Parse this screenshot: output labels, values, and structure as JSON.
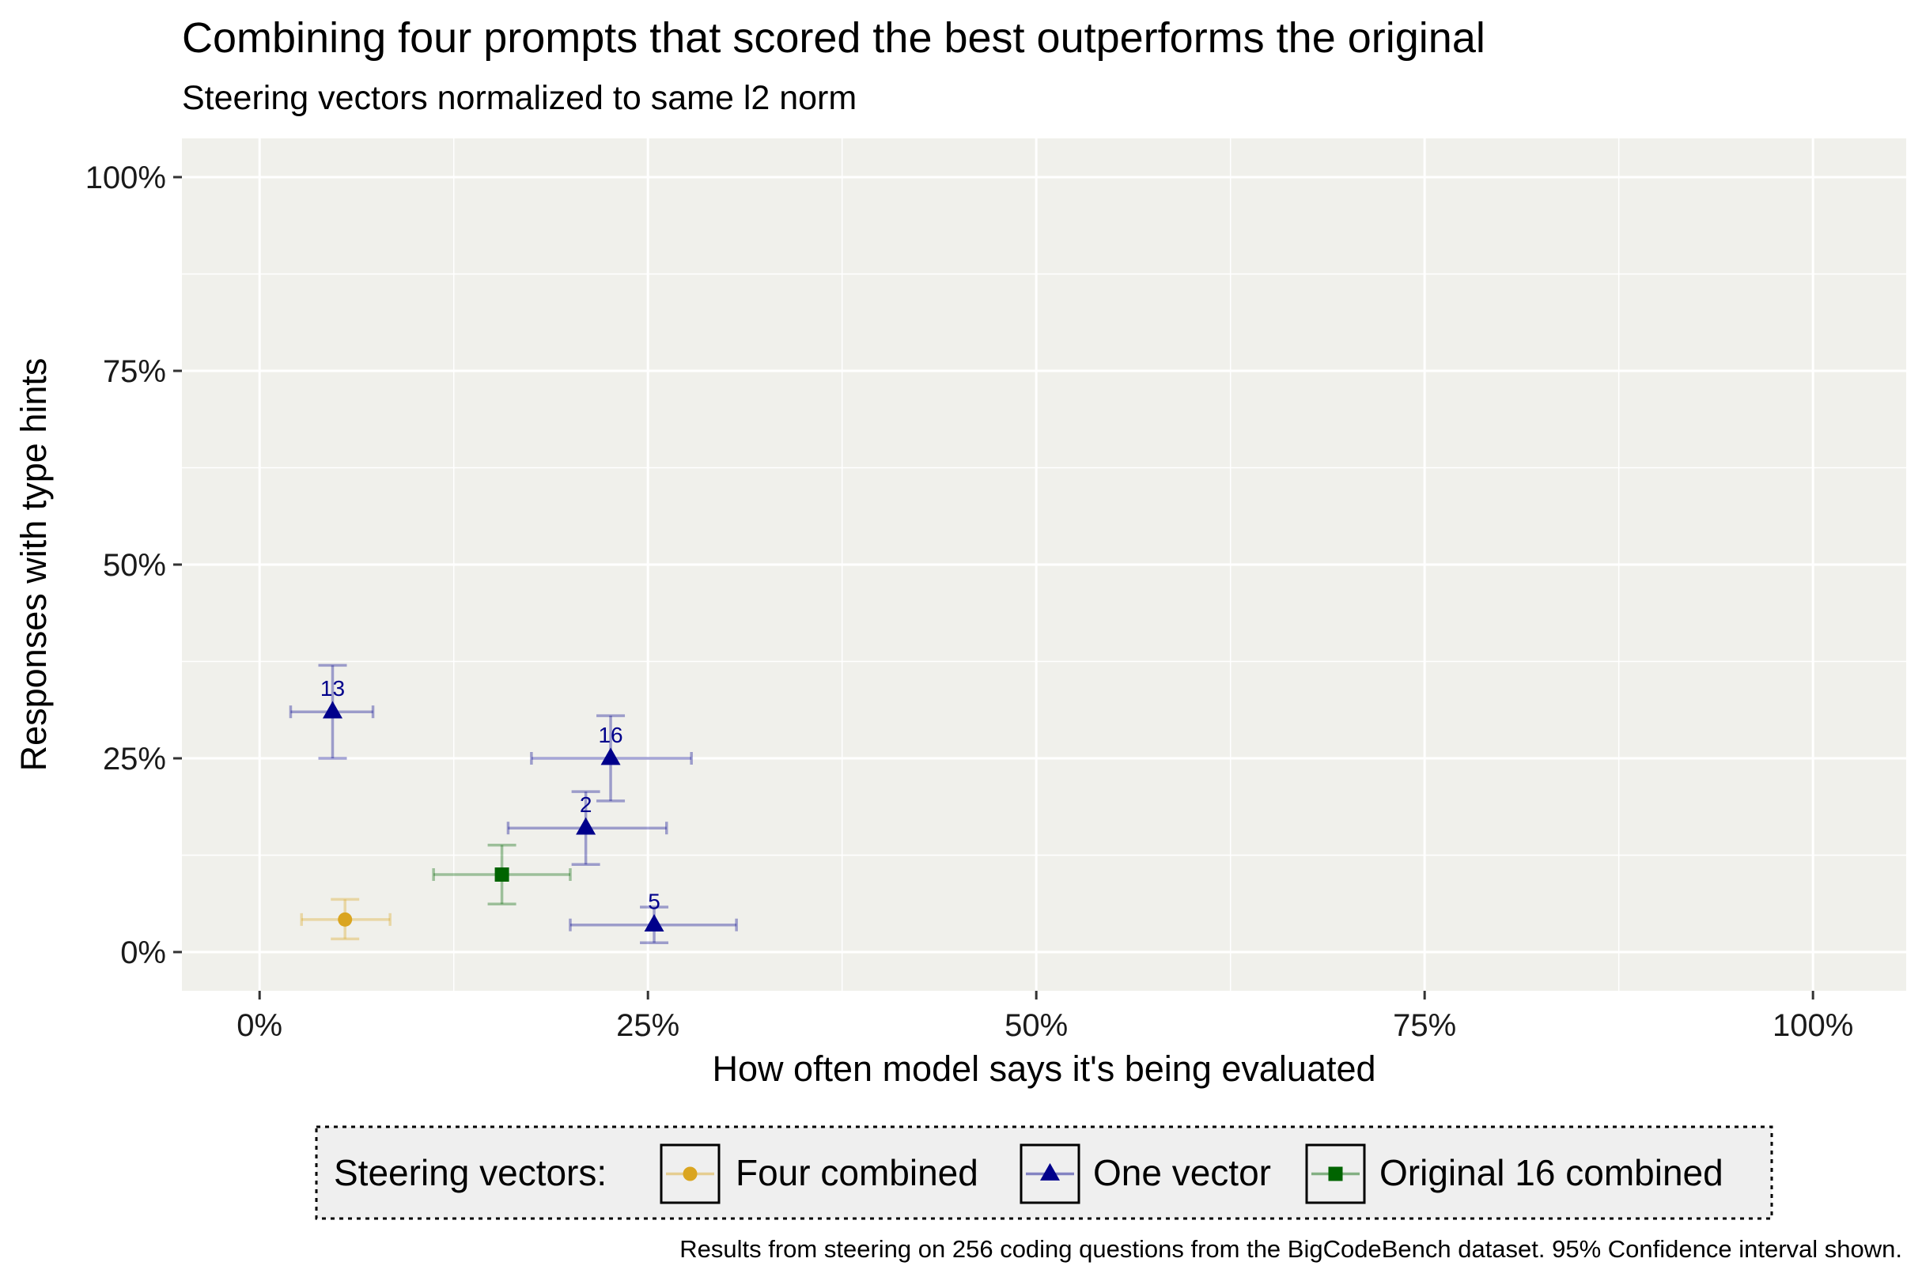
{
  "title": "Combining four prompts that scored the best outperforms the original",
  "subtitle": "Steering vectors normalized to same l2 norm",
  "caption": "Results from steering on 256 coding questions from the BigCodeBench dataset. 95% Confidence interval shown.",
  "chart_data": {
    "type": "scatter",
    "xlabel": "How often model says it's being evaluated",
    "ylabel": "Responses with type hints",
    "xlim": [
      -0.05,
      1.06
    ],
    "ylim": [
      -0.05,
      1.05
    ],
    "x_ticks": [
      0,
      0.25,
      0.5,
      0.75,
      1.0
    ],
    "x_tick_labels": [
      "0%",
      "25%",
      "50%",
      "75%",
      "100%"
    ],
    "y_ticks": [
      0,
      0.25,
      0.5,
      0.75,
      1.0
    ],
    "y_tick_labels": [
      "0%",
      "25%",
      "50%",
      "75%",
      "100%"
    ],
    "grid": true,
    "legend_title": "Steering vectors:",
    "legend_position": "bottom",
    "series": [
      {
        "name": "Four combined",
        "color": "#DAA520",
        "marker": "circle",
        "points": [
          {
            "label": "",
            "x": 0.055,
            "y": 0.042,
            "xerr": [
              0.027,
              0.084
            ],
            "yerr": [
              0.017,
              0.068
            ]
          }
        ]
      },
      {
        "name": "One vector",
        "color": "#00008B",
        "marker": "triangle",
        "points": [
          {
            "label": "13",
            "x": 0.047,
            "y": 0.31,
            "xerr": [
              0.02,
              0.073
            ],
            "yerr": [
              0.25,
              0.37
            ]
          },
          {
            "label": "16",
            "x": 0.226,
            "y": 0.25,
            "xerr": [
              0.175,
              0.278
            ],
            "yerr": [
              0.195,
              0.305
            ]
          },
          {
            "label": "2",
            "x": 0.21,
            "y": 0.16,
            "xerr": [
              0.16,
              0.262
            ],
            "yerr": [
              0.113,
              0.207
            ]
          },
          {
            "label": "5",
            "x": 0.254,
            "y": 0.035,
            "xerr": [
              0.2,
              0.307
            ],
            "yerr": [
              0.012,
              0.058
            ]
          }
        ]
      },
      {
        "name": "Original 16 combined",
        "color": "#006400",
        "marker": "square",
        "points": [
          {
            "label": "",
            "x": 0.156,
            "y": 0.1,
            "xerr": [
              0.112,
              0.2
            ],
            "yerr": [
              0.062,
              0.138
            ]
          }
        ]
      }
    ]
  }
}
